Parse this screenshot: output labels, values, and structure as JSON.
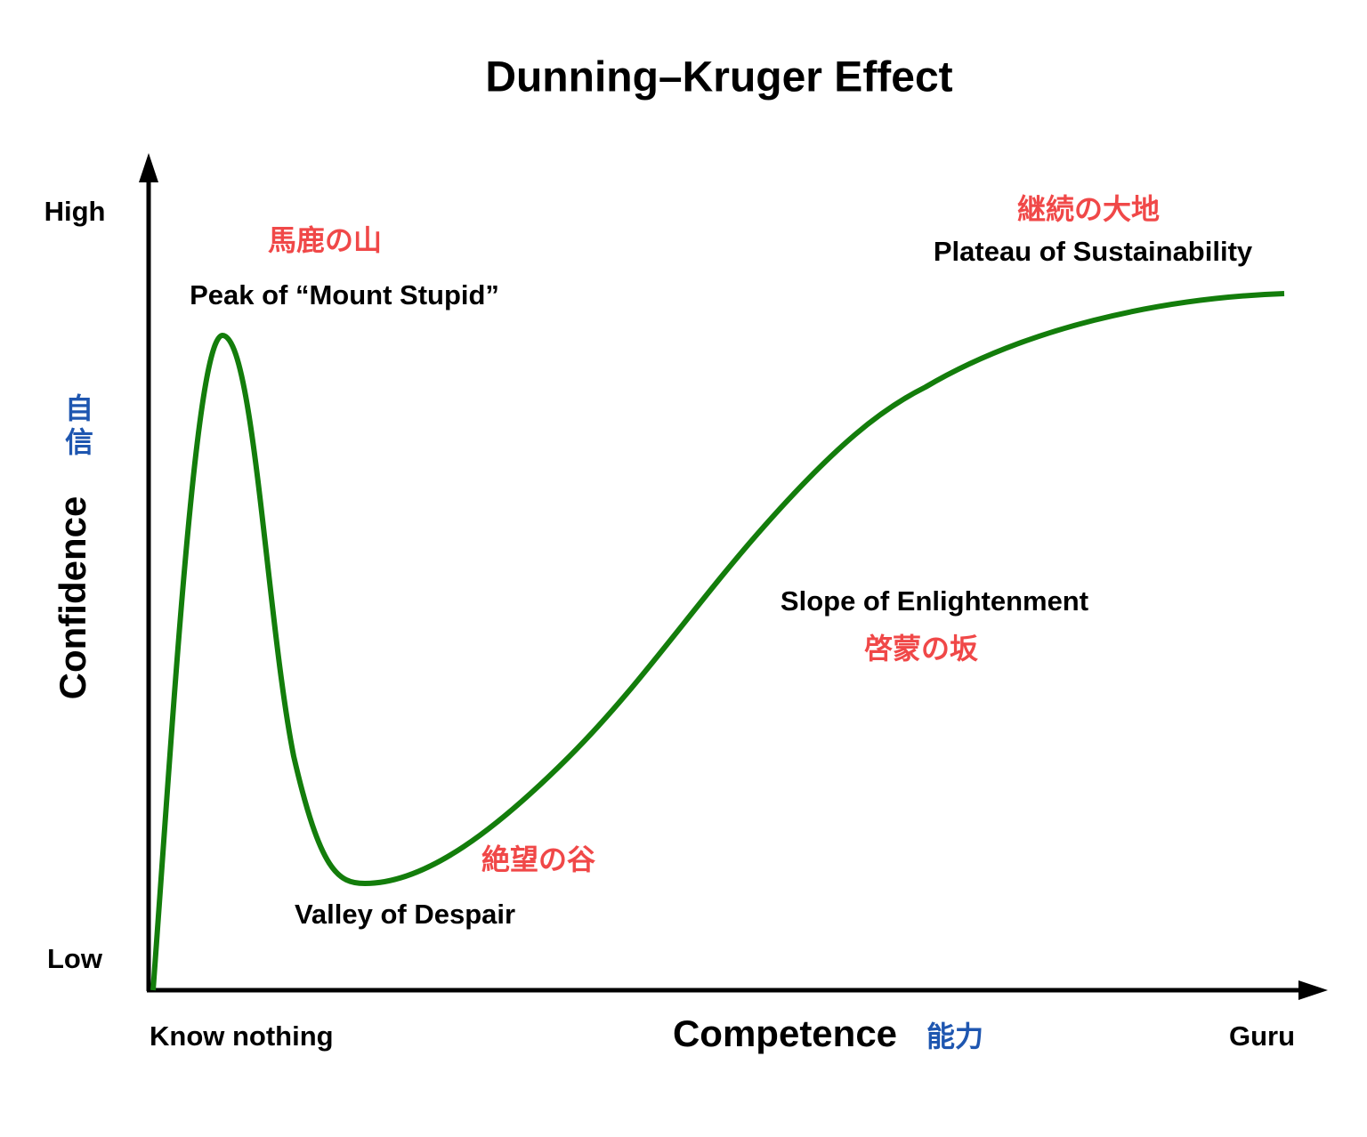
{
  "title": "Dunning–Kruger Effect",
  "y_axis": {
    "label": "Confidence",
    "label_ja": "自信",
    "high": "High",
    "low": "Low"
  },
  "x_axis": {
    "label": "Competence",
    "label_ja": "能力",
    "start": "Know nothing",
    "end": "Guru"
  },
  "stages": [
    {
      "label": "Peak of “Mount Stupid”",
      "label_ja": "馬鹿の山"
    },
    {
      "label": "Valley of Despair",
      "label_ja": "絶望の谷"
    },
    {
      "label": "Slope of Enlightenment",
      "label_ja": "啓蒙の坂"
    },
    {
      "label": "Plateau of Sustainability",
      "label_ja": "継続の大地"
    }
  ]
}
